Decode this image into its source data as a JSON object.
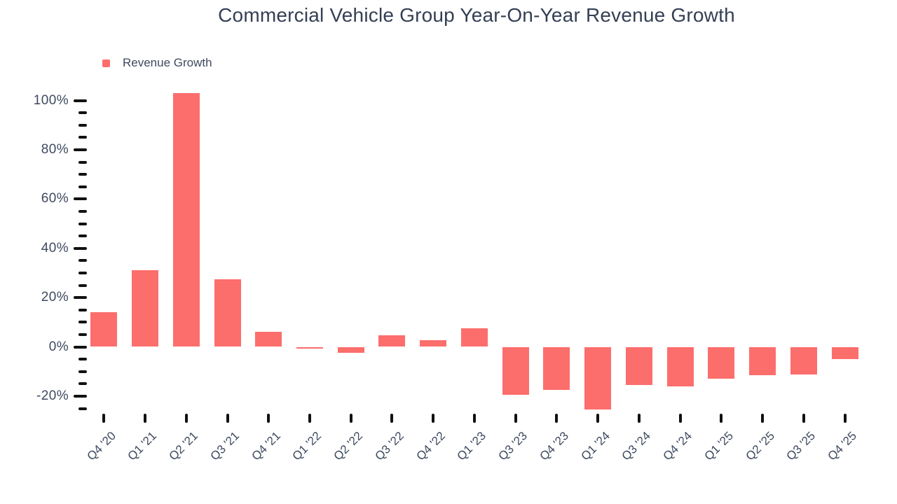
{
  "chart_data": {
    "type": "bar",
    "title": "Commercial Vehicle Group Year-On-Year Revenue Growth",
    "legend_label": "Revenue Growth",
    "legend_position": "top-left",
    "xlabel": "",
    "ylabel": "",
    "unit": "%",
    "grid": false,
    "categories": [
      "Q4 '20",
      "Q1 '21",
      "Q2 '21",
      "Q3 '21",
      "Q4 '21",
      "Q1 '22",
      "Q2 '22",
      "Q3 '22",
      "Q4 '22",
      "Q1 '23",
      "Q3 '23",
      "Q4 '23",
      "Q1 '24",
      "Q3 '24",
      "Q4 '24",
      "Q1 '25",
      "Q2 '25",
      "Q3 '25",
      "Q4 '25"
    ],
    "values": [
      14,
      31,
      103,
      27.5,
      6,
      -0.4,
      -2.5,
      4.8,
      2.7,
      7.4,
      -19.5,
      -17.5,
      -25.5,
      -15.5,
      -16,
      -13,
      -11.4,
      -11.2,
      -5.1
    ],
    "ylim": [
      -27.5,
      105
    ],
    "y_major_ticks": [
      {
        "value": 100,
        "label": "100%"
      },
      {
        "value": 80,
        "label": "80%"
      },
      {
        "value": 60,
        "label": "60%"
      },
      {
        "value": 40,
        "label": "40%"
      },
      {
        "value": 20,
        "label": "20%"
      },
      {
        "value": 0,
        "label": "0%"
      },
      {
        "value": -20,
        "label": "-20%"
      }
    ],
    "y_minor_tick_step": 5
  },
  "colors": {
    "bar": "#FC6E6C",
    "title_text": "#343F54",
    "axis_text": "#3E4A5F",
    "tick": "#111111"
  }
}
